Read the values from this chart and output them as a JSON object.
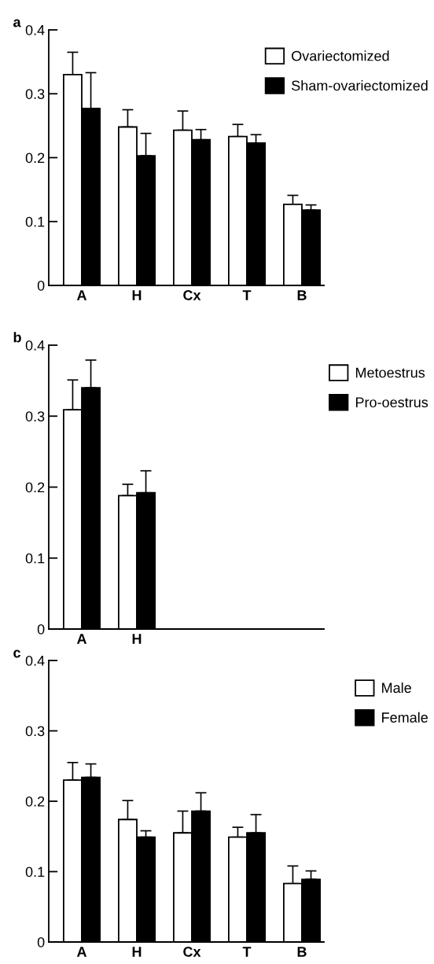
{
  "chart_data": [
    {
      "type": "bar",
      "title": "a",
      "categories": [
        "A",
        "H",
        "Cx",
        "T",
        "B"
      ],
      "ylim": [
        0,
        0.4
      ],
      "yticks": [
        0,
        0.1,
        0.2,
        0.3,
        0.4
      ],
      "legend": "top right",
      "grid": false,
      "series": [
        {
          "name": "Ovariectomized",
          "color": "#ffffff",
          "values": [
            0.33,
            0.248,
            0.243,
            0.233,
            0.127
          ],
          "errors": [
            [
              0.33,
              0.365
            ],
            [
              0.248,
              0.275
            ],
            [
              0.243,
              0.273
            ],
            [
              0.233,
              0.252
            ],
            [
              0.127,
              0.141
            ]
          ]
        },
        {
          "name": "Sham-ovariectomized",
          "color": "#000000",
          "values": [
            0.277,
            0.203,
            0.228,
            0.223,
            0.118
          ],
          "errors": [
            [
              0.277,
              0.333
            ],
            [
              0.203,
              0.238
            ],
            [
              0.228,
              0.244
            ],
            [
              0.223,
              0.236
            ],
            [
              0.118,
              0.126
            ]
          ]
        }
      ]
    },
    {
      "type": "bar",
      "title": "b",
      "categories": [
        "A",
        "H",
        null,
        null,
        null
      ],
      "ylim": [
        0,
        0.4
      ],
      "yticks": [
        0,
        0.1,
        0.2,
        0.3,
        0.4
      ],
      "legend": "top right",
      "grid": false,
      "series": [
        {
          "name": "Metoestrus",
          "color": "#ffffff",
          "values": [
            0.309,
            0.188,
            null,
            null,
            null
          ],
          "errors": [
            [
              0.309,
              0.351
            ],
            [
              0.188,
              0.204
            ],
            null,
            null,
            null
          ]
        },
        {
          "name": "Pro-oestrus",
          "color": "#000000",
          "values": [
            0.34,
            0.192,
            null,
            null,
            null
          ],
          "errors": [
            [
              0.34,
              0.379
            ],
            [
              0.192,
              0.223
            ],
            null,
            null,
            null
          ]
        }
      ]
    },
    {
      "type": "bar",
      "title": "c",
      "categories": [
        "A",
        "H",
        "Cx",
        "T",
        "B"
      ],
      "ylim": [
        0,
        0.4
      ],
      "yticks": [
        0,
        0.1,
        0.2,
        0.3,
        0.4
      ],
      "legend": "top right",
      "grid": false,
      "series": [
        {
          "name": "Male",
          "color": "#ffffff",
          "values": [
            0.23,
            0.174,
            0.155,
            0.149,
            0.083
          ],
          "errors": [
            [
              0.23,
              0.255
            ],
            [
              0.174,
              0.201
            ],
            [
              0.155,
              0.186
            ],
            [
              0.149,
              0.163
            ],
            [
              0.083,
              0.108
            ]
          ]
        },
        {
          "name": "Female",
          "color": "#000000",
          "values": [
            0.234,
            0.149,
            0.186,
            0.155,
            0.089
          ],
          "errors": [
            [
              0.234,
              0.253
            ],
            [
              0.149,
              0.158
            ],
            [
              0.186,
              0.212
            ],
            [
              0.155,
              0.181
            ],
            [
              0.089,
              0.101
            ]
          ]
        }
      ]
    }
  ]
}
